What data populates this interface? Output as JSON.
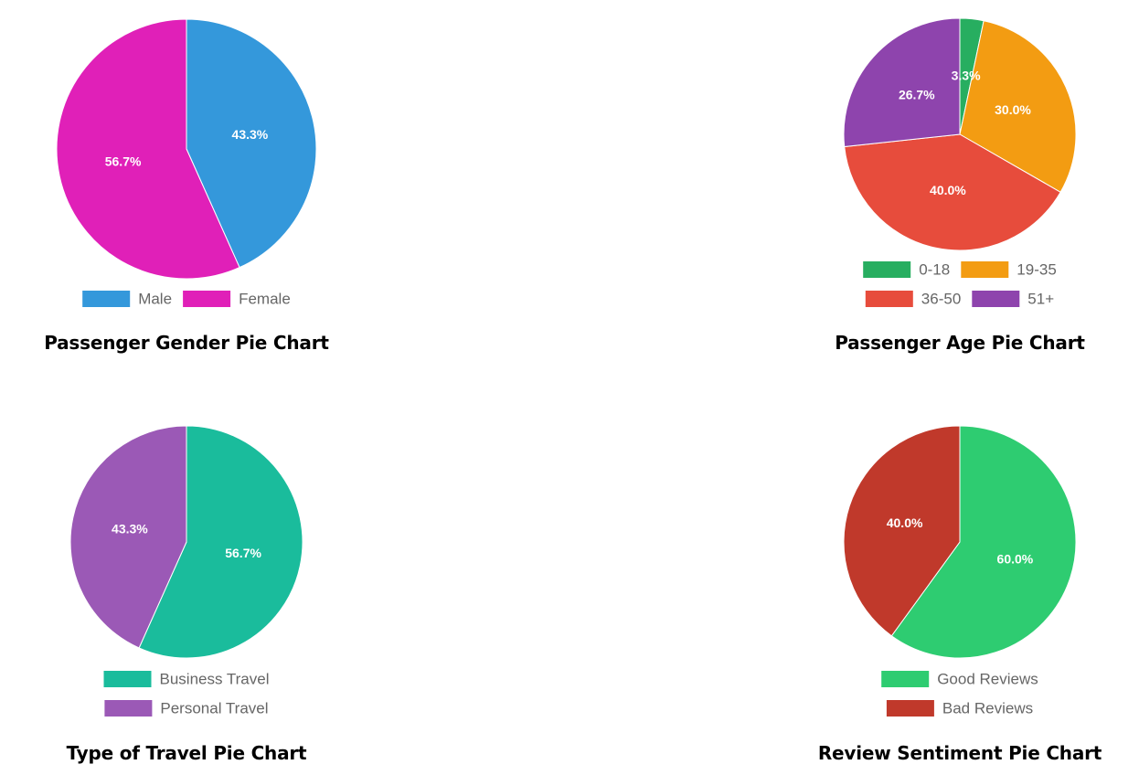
{
  "chart_data": [
    {
      "type": "pie",
      "title": "Passenger Gender Pie Chart",
      "categories": [
        "Male",
        "Female"
      ],
      "values": [
        43.3,
        56.7
      ],
      "labels": [
        "43.3%",
        "56.7%"
      ],
      "colors": [
        "#3498db",
        "#e020b8"
      ],
      "legend": "bottom"
    },
    {
      "type": "pie",
      "title": "Passenger Age Pie Chart",
      "categories": [
        "0-18",
        "19-35",
        "36-50",
        "51+"
      ],
      "values": [
        3.3,
        30.0,
        40.0,
        26.7
      ],
      "labels": [
        "3.3%",
        "30.0%",
        "40.0%",
        "26.7%"
      ],
      "colors": [
        "#27ae60",
        "#f39c12",
        "#e74c3c",
        "#8e44ad"
      ],
      "legend": "bottom"
    },
    {
      "type": "pie",
      "title": "Type of Travel Pie Chart",
      "categories": [
        "Business Travel",
        "Personal Travel"
      ],
      "values": [
        56.7,
        43.3
      ],
      "labels": [
        "56.7%",
        "43.3%"
      ],
      "colors": [
        "#1abc9c",
        "#9b59b6"
      ],
      "legend": "bottom"
    },
    {
      "type": "pie",
      "title": "Review Sentiment Pie Chart",
      "categories": [
        "Good Reviews",
        "Bad Reviews"
      ],
      "values": [
        60.0,
        40.0
      ],
      "labels": [
        "60.0%",
        "40.0%"
      ],
      "colors": [
        "#2ecc71",
        "#c0392b"
      ],
      "legend": "bottom"
    }
  ]
}
